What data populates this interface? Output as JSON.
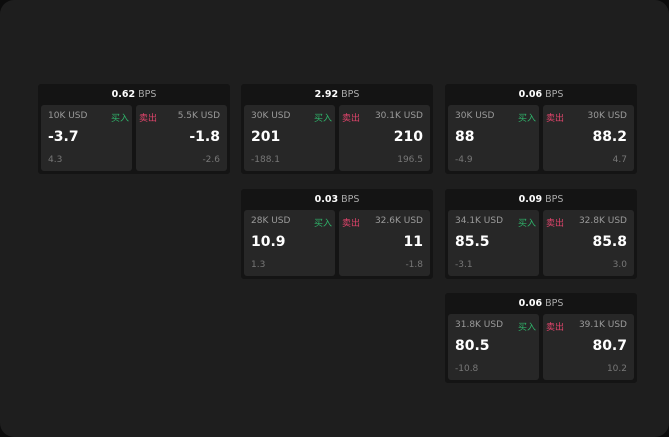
{
  "colors": {
    "buy": "#2fb36a",
    "sell": "#e0446b"
  },
  "unit": "BPS",
  "buy_label": "买入",
  "sell_label": "卖出",
  "cards": [
    {
      "spread": "0.62",
      "buy": {
        "size": "10K USD",
        "price": "-3.7",
        "change": "4.3"
      },
      "sell": {
        "size": "5.5K USD",
        "price": "-1.8",
        "change": "-2.6"
      }
    },
    {
      "spread": "2.92",
      "buy": {
        "size": "30K USD",
        "price": "201",
        "change": "-188.1"
      },
      "sell": {
        "size": "30.1K USD",
        "price": "210",
        "change": "196.5"
      }
    },
    {
      "spread": "0.06",
      "buy": {
        "size": "30K USD",
        "price": "88",
        "change": "-4.9"
      },
      "sell": {
        "size": "30K USD",
        "price": "88.2",
        "change": "4.7"
      }
    },
    {
      "spread": "0.03",
      "buy": {
        "size": "28K USD",
        "price": "10.9",
        "change": "1.3"
      },
      "sell": {
        "size": "32.6K USD",
        "price": "11",
        "change": "-1.8"
      }
    },
    {
      "spread": "0.09",
      "buy": {
        "size": "34.1K USD",
        "price": "85.5",
        "change": "-3.1"
      },
      "sell": {
        "size": "32.8K USD",
        "price": "85.8",
        "change": "3.0"
      }
    },
    {
      "spread": "0.06",
      "buy": {
        "size": "31.8K USD",
        "price": "80.5",
        "change": "-10.8"
      },
      "sell": {
        "size": "39.1K USD",
        "price": "80.7",
        "change": "10.2"
      }
    }
  ]
}
